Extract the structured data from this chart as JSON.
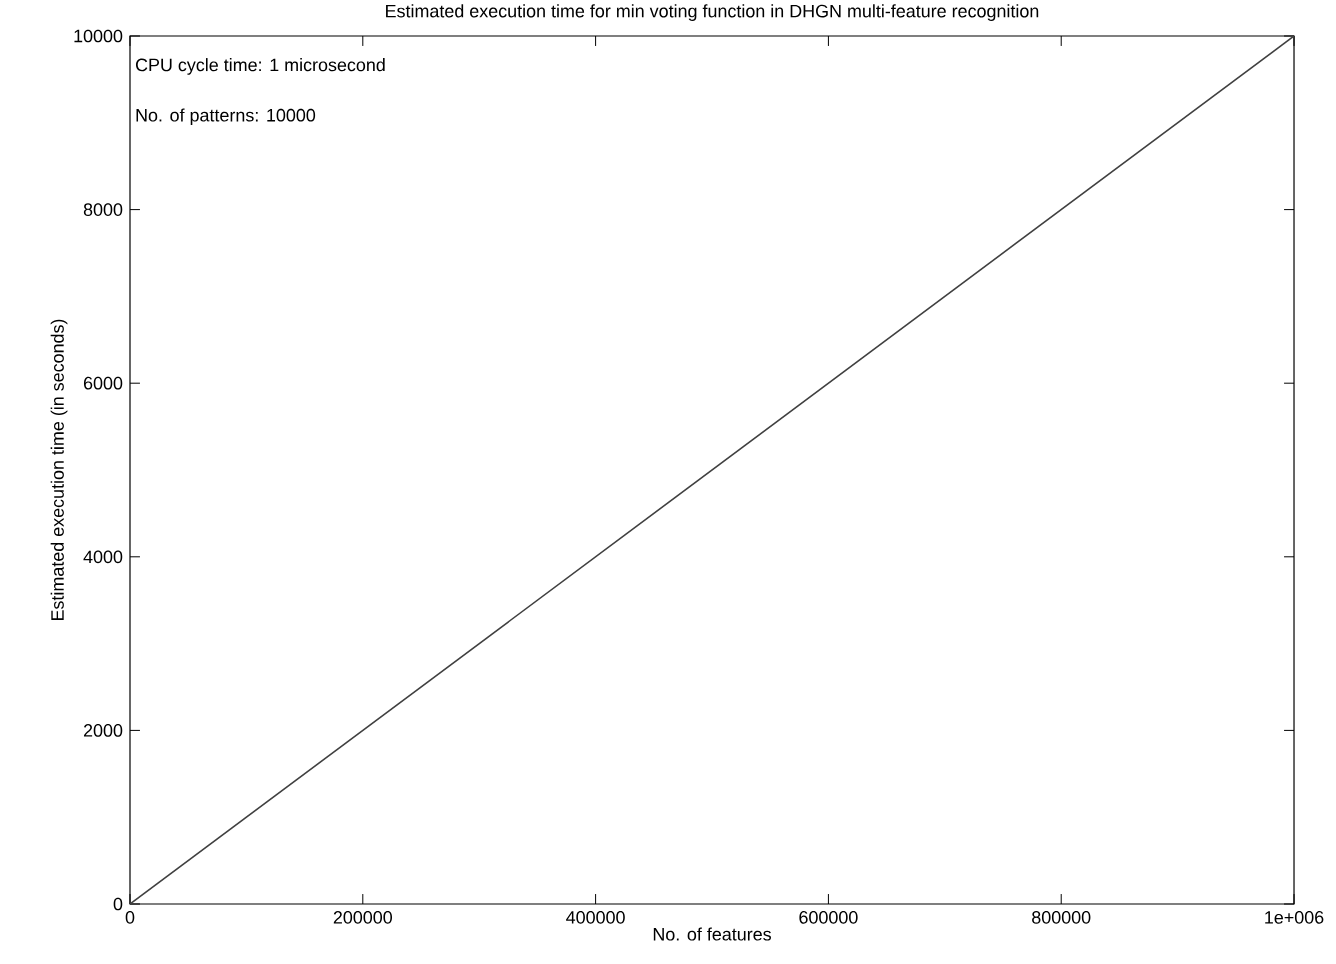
{
  "chart_data": {
    "type": "line",
    "title": "Estimated execution time for min voting function in DHGN multi-feature recognition",
    "xlabel": "No. of features",
    "ylabel": "Estimated execution time (in seconds)",
    "x": [
      0,
      1000000
    ],
    "series": [
      {
        "color": "#404040",
        "values": [
          0,
          10000
        ]
      }
    ],
    "xlim": [
      0,
      1000000
    ],
    "ylim": [
      0,
      10000
    ],
    "xticks": [
      0,
      200000,
      400000,
      600000,
      800000,
      {
        "value": 1000000,
        "label": "1e+006"
      }
    ],
    "yticks": [
      0,
      2000,
      4000,
      6000,
      8000,
      10000
    ],
    "line_style": "solid",
    "marker": "none",
    "annotations": [
      "CPU cycle time: 1 microsecond",
      "No. of patterns: 10000"
    ]
  }
}
